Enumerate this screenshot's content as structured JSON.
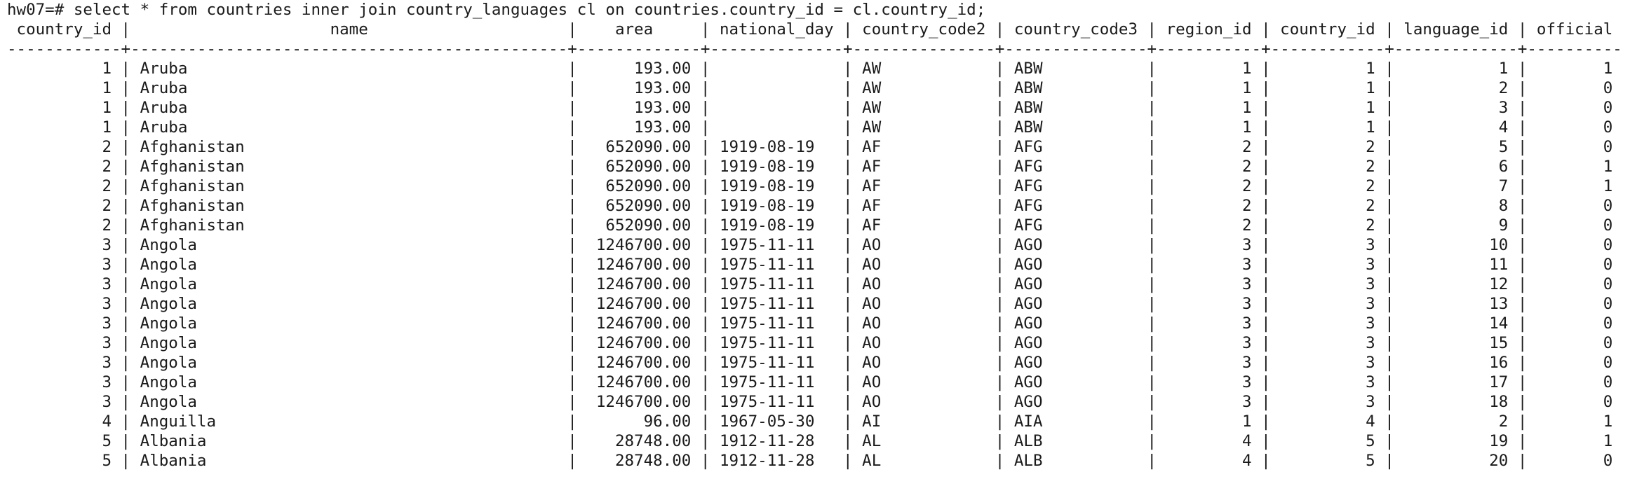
{
  "terminal": {
    "prompt": "hw07=# ",
    "command": "select * from countries inner join country_languages cl on countries.country_id = cl.country_id;",
    "header": " country_id |                     name                     |    area     | national_day | country_code2 | country_code3 | region_id | country_id | language_id | official",
    "separator": "------------+----------------------------------------------+-------------+--------------+---------------+---------------+-----------+------------+-------------+----------"
  },
  "result": {
    "columns": [
      "country_id",
      "name",
      "area",
      "national_day",
      "country_code2",
      "country_code3",
      "region_id",
      "country_id",
      "language_id",
      "official"
    ],
    "rows": [
      [
        "1",
        "Aruba",
        "193.00",
        "",
        "AW",
        "ABW",
        "1",
        "1",
        "1",
        "1"
      ],
      [
        "1",
        "Aruba",
        "193.00",
        "",
        "AW",
        "ABW",
        "1",
        "1",
        "2",
        "0"
      ],
      [
        "1",
        "Aruba",
        "193.00",
        "",
        "AW",
        "ABW",
        "1",
        "1",
        "3",
        "0"
      ],
      [
        "1",
        "Aruba",
        "193.00",
        "",
        "AW",
        "ABW",
        "1",
        "1",
        "4",
        "0"
      ],
      [
        "2",
        "Afghanistan",
        "652090.00",
        "1919-08-19",
        "AF",
        "AFG",
        "2",
        "2",
        "5",
        "0"
      ],
      [
        "2",
        "Afghanistan",
        "652090.00",
        "1919-08-19",
        "AF",
        "AFG",
        "2",
        "2",
        "6",
        "1"
      ],
      [
        "2",
        "Afghanistan",
        "652090.00",
        "1919-08-19",
        "AF",
        "AFG",
        "2",
        "2",
        "7",
        "1"
      ],
      [
        "2",
        "Afghanistan",
        "652090.00",
        "1919-08-19",
        "AF",
        "AFG",
        "2",
        "2",
        "8",
        "0"
      ],
      [
        "2",
        "Afghanistan",
        "652090.00",
        "1919-08-19",
        "AF",
        "AFG",
        "2",
        "2",
        "9",
        "0"
      ],
      [
        "3",
        "Angola",
        "1246700.00",
        "1975-11-11",
        "AO",
        "AGO",
        "3",
        "3",
        "10",
        "0"
      ],
      [
        "3",
        "Angola",
        "1246700.00",
        "1975-11-11",
        "AO",
        "AGO",
        "3",
        "3",
        "11",
        "0"
      ],
      [
        "3",
        "Angola",
        "1246700.00",
        "1975-11-11",
        "AO",
        "AGO",
        "3",
        "3",
        "12",
        "0"
      ],
      [
        "3",
        "Angola",
        "1246700.00",
        "1975-11-11",
        "AO",
        "AGO",
        "3",
        "3",
        "13",
        "0"
      ],
      [
        "3",
        "Angola",
        "1246700.00",
        "1975-11-11",
        "AO",
        "AGO",
        "3",
        "3",
        "14",
        "0"
      ],
      [
        "3",
        "Angola",
        "1246700.00",
        "1975-11-11",
        "AO",
        "AGO",
        "3",
        "3",
        "15",
        "0"
      ],
      [
        "3",
        "Angola",
        "1246700.00",
        "1975-11-11",
        "AO",
        "AGO",
        "3",
        "3",
        "16",
        "0"
      ],
      [
        "3",
        "Angola",
        "1246700.00",
        "1975-11-11",
        "AO",
        "AGO",
        "3",
        "3",
        "17",
        "0"
      ],
      [
        "3",
        "Angola",
        "1246700.00",
        "1975-11-11",
        "AO",
        "AGO",
        "3",
        "3",
        "18",
        "0"
      ],
      [
        "4",
        "Anguilla",
        "96.00",
        "1967-05-30",
        "AI",
        "AIA",
        "1",
        "4",
        "2",
        "1"
      ],
      [
        "5",
        "Albania",
        "28748.00",
        "1912-11-28",
        "AL",
        "ALB",
        "4",
        "5",
        "19",
        "1"
      ],
      [
        "5",
        "Albania",
        "28748.00",
        "1912-11-28",
        "AL",
        "ALB",
        "4",
        "5",
        "20",
        "0"
      ]
    ]
  }
}
